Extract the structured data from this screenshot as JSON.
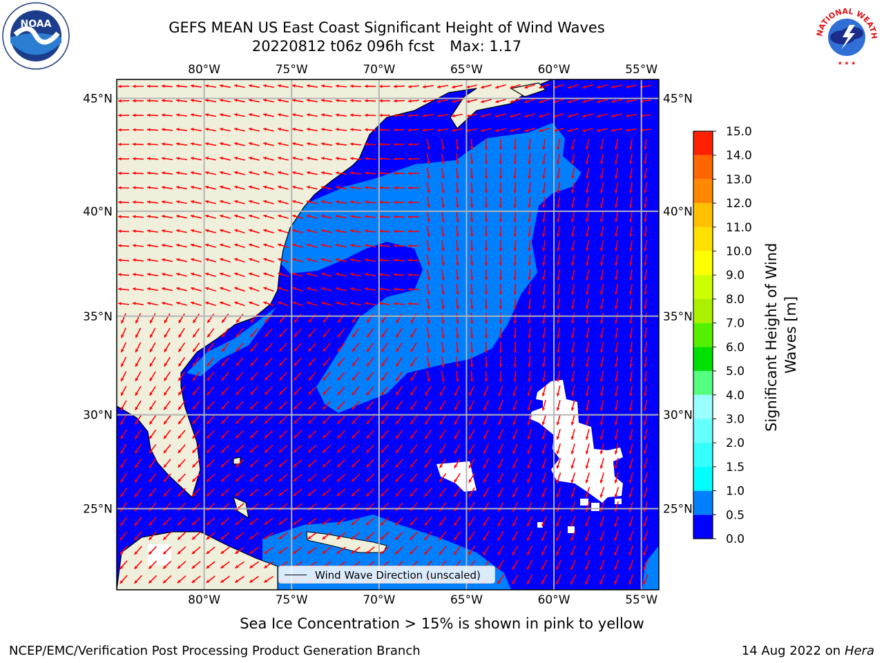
{
  "header": {
    "title_line1": "GEFS MEAN US East Coast Significant Height of Wind Waves",
    "title_line2_date": "20220812 t06z 096h fcst",
    "title_line2_max": "Max: 1.17"
  },
  "logos": {
    "left": {
      "icon": "noaa-logo-icon",
      "text": "NOAA",
      "ring_text": "NATIONAL OCEANIC AND ATMOSPHERIC ADMINISTRATION · U.S. DEPARTMENT OF COMMERCE"
    },
    "right": {
      "icon": "nws-logo-icon",
      "ring_text": "NATIONAL WEATHER SERVICE"
    }
  },
  "map": {
    "lon_range": [
      -85,
      -54
    ],
    "lat_range": [
      20.5,
      45.8
    ],
    "lon_ticks": [
      {
        "value": -80,
        "label": "80°W"
      },
      {
        "value": -75,
        "label": "75°W"
      },
      {
        "value": -70,
        "label": "70°W"
      },
      {
        "value": -65,
        "label": "65°W"
      },
      {
        "value": -60,
        "label": "60°W"
      },
      {
        "value": -55,
        "label": "55°W"
      }
    ],
    "lat_ticks": [
      {
        "value": 45,
        "label": "45°N"
      },
      {
        "value": 40,
        "label": "40°N"
      },
      {
        "value": 35,
        "label": "35°N"
      },
      {
        "value": 30,
        "label": "30°N"
      },
      {
        "value": 25,
        "label": "25°N"
      }
    ],
    "grid": true,
    "colors": {
      "land": "#efefdc",
      "ocean_low": "#0000ff",
      "ocean_mid": "#0080ff",
      "grid": "#b4b4b4",
      "arrow": "#ff0000",
      "coast": "#000000"
    },
    "legend": {
      "label": "Wind Wave Direction (unscaled)",
      "placement": "bottom-center"
    }
  },
  "colorbar": {
    "title": "Significant Height of Wind Waves [m]",
    "title_line1": "Significant Height of Wind",
    "title_line2": "Waves [m]",
    "levels": [
      "0.0",
      "0.5",
      "1.0",
      "1.5",
      "2.0",
      "3.0",
      "4.0",
      "5.0",
      "6.0",
      "7.0",
      "8.0",
      "9.0",
      "10.0",
      "11.0",
      "12.0",
      "13.0",
      "14.0",
      "15.0"
    ],
    "colors": [
      "#0000ff",
      "#0080ff",
      "#00ffff",
      "#33ffff",
      "#66ffff",
      "#99ffff",
      "#55ff80",
      "#00e000",
      "#55f000",
      "#aaf000",
      "#ccff00",
      "#ffff00",
      "#ffe000",
      "#ffc000",
      "#ff8800",
      "#ff6600",
      "#ff2200"
    ]
  },
  "note": "Sea Ice Concentration > 15% is shown in pink to yellow",
  "footer": {
    "left": "NCEP/EMC/Verification Post Processing Product Generation Branch",
    "right_prefix": "14 Aug 2022 on",
    "right_host": "Hera"
  }
}
